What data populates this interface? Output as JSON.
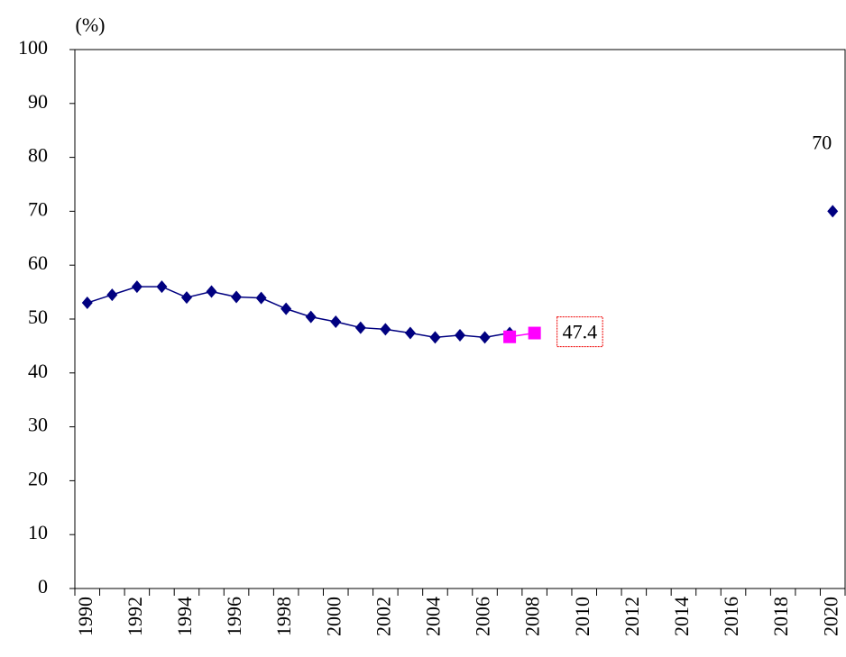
{
  "chart_data": {
    "type": "line",
    "y_label": "(%)",
    "categories": [
      "1990",
      null,
      "1992",
      null,
      "1994",
      null,
      "1996",
      null,
      "1998",
      null,
      "2000",
      null,
      "2002",
      null,
      "2004",
      null,
      "2006",
      null,
      "2008",
      null,
      "2010",
      null,
      "2012",
      null,
      "2014",
      null,
      "2016",
      null,
      "2018",
      null,
      "2020"
    ],
    "series": [
      {
        "color": "#000080",
        "marker": "diamond",
        "values": [
          53,
          54.5,
          56,
          56,
          54,
          55.1,
          54.1,
          53.9,
          51.9,
          50.4,
          49.5,
          48.4,
          48.1,
          47.4,
          46.6,
          47,
          46.6,
          47.4,
          null,
          null,
          null,
          null,
          null,
          null,
          null,
          null,
          null,
          null,
          null,
          null,
          70
        ],
        "value_labels": [
          null,
          null,
          null,
          null,
          null,
          null,
          null,
          null,
          null,
          null,
          null,
          null,
          null,
          null,
          null,
          null,
          null,
          null,
          null,
          null,
          null,
          null,
          null,
          null,
          null,
          null,
          null,
          null,
          null,
          null,
          "70"
        ]
      },
      {
        "color": "#ff00ff",
        "marker": "square",
        "values": [
          null,
          null,
          null,
          null,
          null,
          null,
          null,
          null,
          null,
          null,
          null,
          null,
          null,
          null,
          null,
          null,
          null,
          46.7,
          47.4,
          null,
          null,
          null,
          null,
          null,
          null,
          null,
          null,
          null,
          null,
          null,
          null
        ],
        "value_labels": [
          null,
          null,
          null,
          null,
          null,
          null,
          null,
          null,
          null,
          null,
          null,
          null,
          null,
          null,
          null,
          null,
          null,
          null,
          "47.4",
          null,
          null,
          null,
          null,
          null,
          null,
          null,
          null,
          null,
          null,
          null,
          null
        ]
      }
    ],
    "ylim": [
      0,
      100
    ],
    "yticks": [
      0,
      10,
      20,
      30,
      40,
      50,
      60,
      70,
      80,
      90,
      100
    ]
  }
}
